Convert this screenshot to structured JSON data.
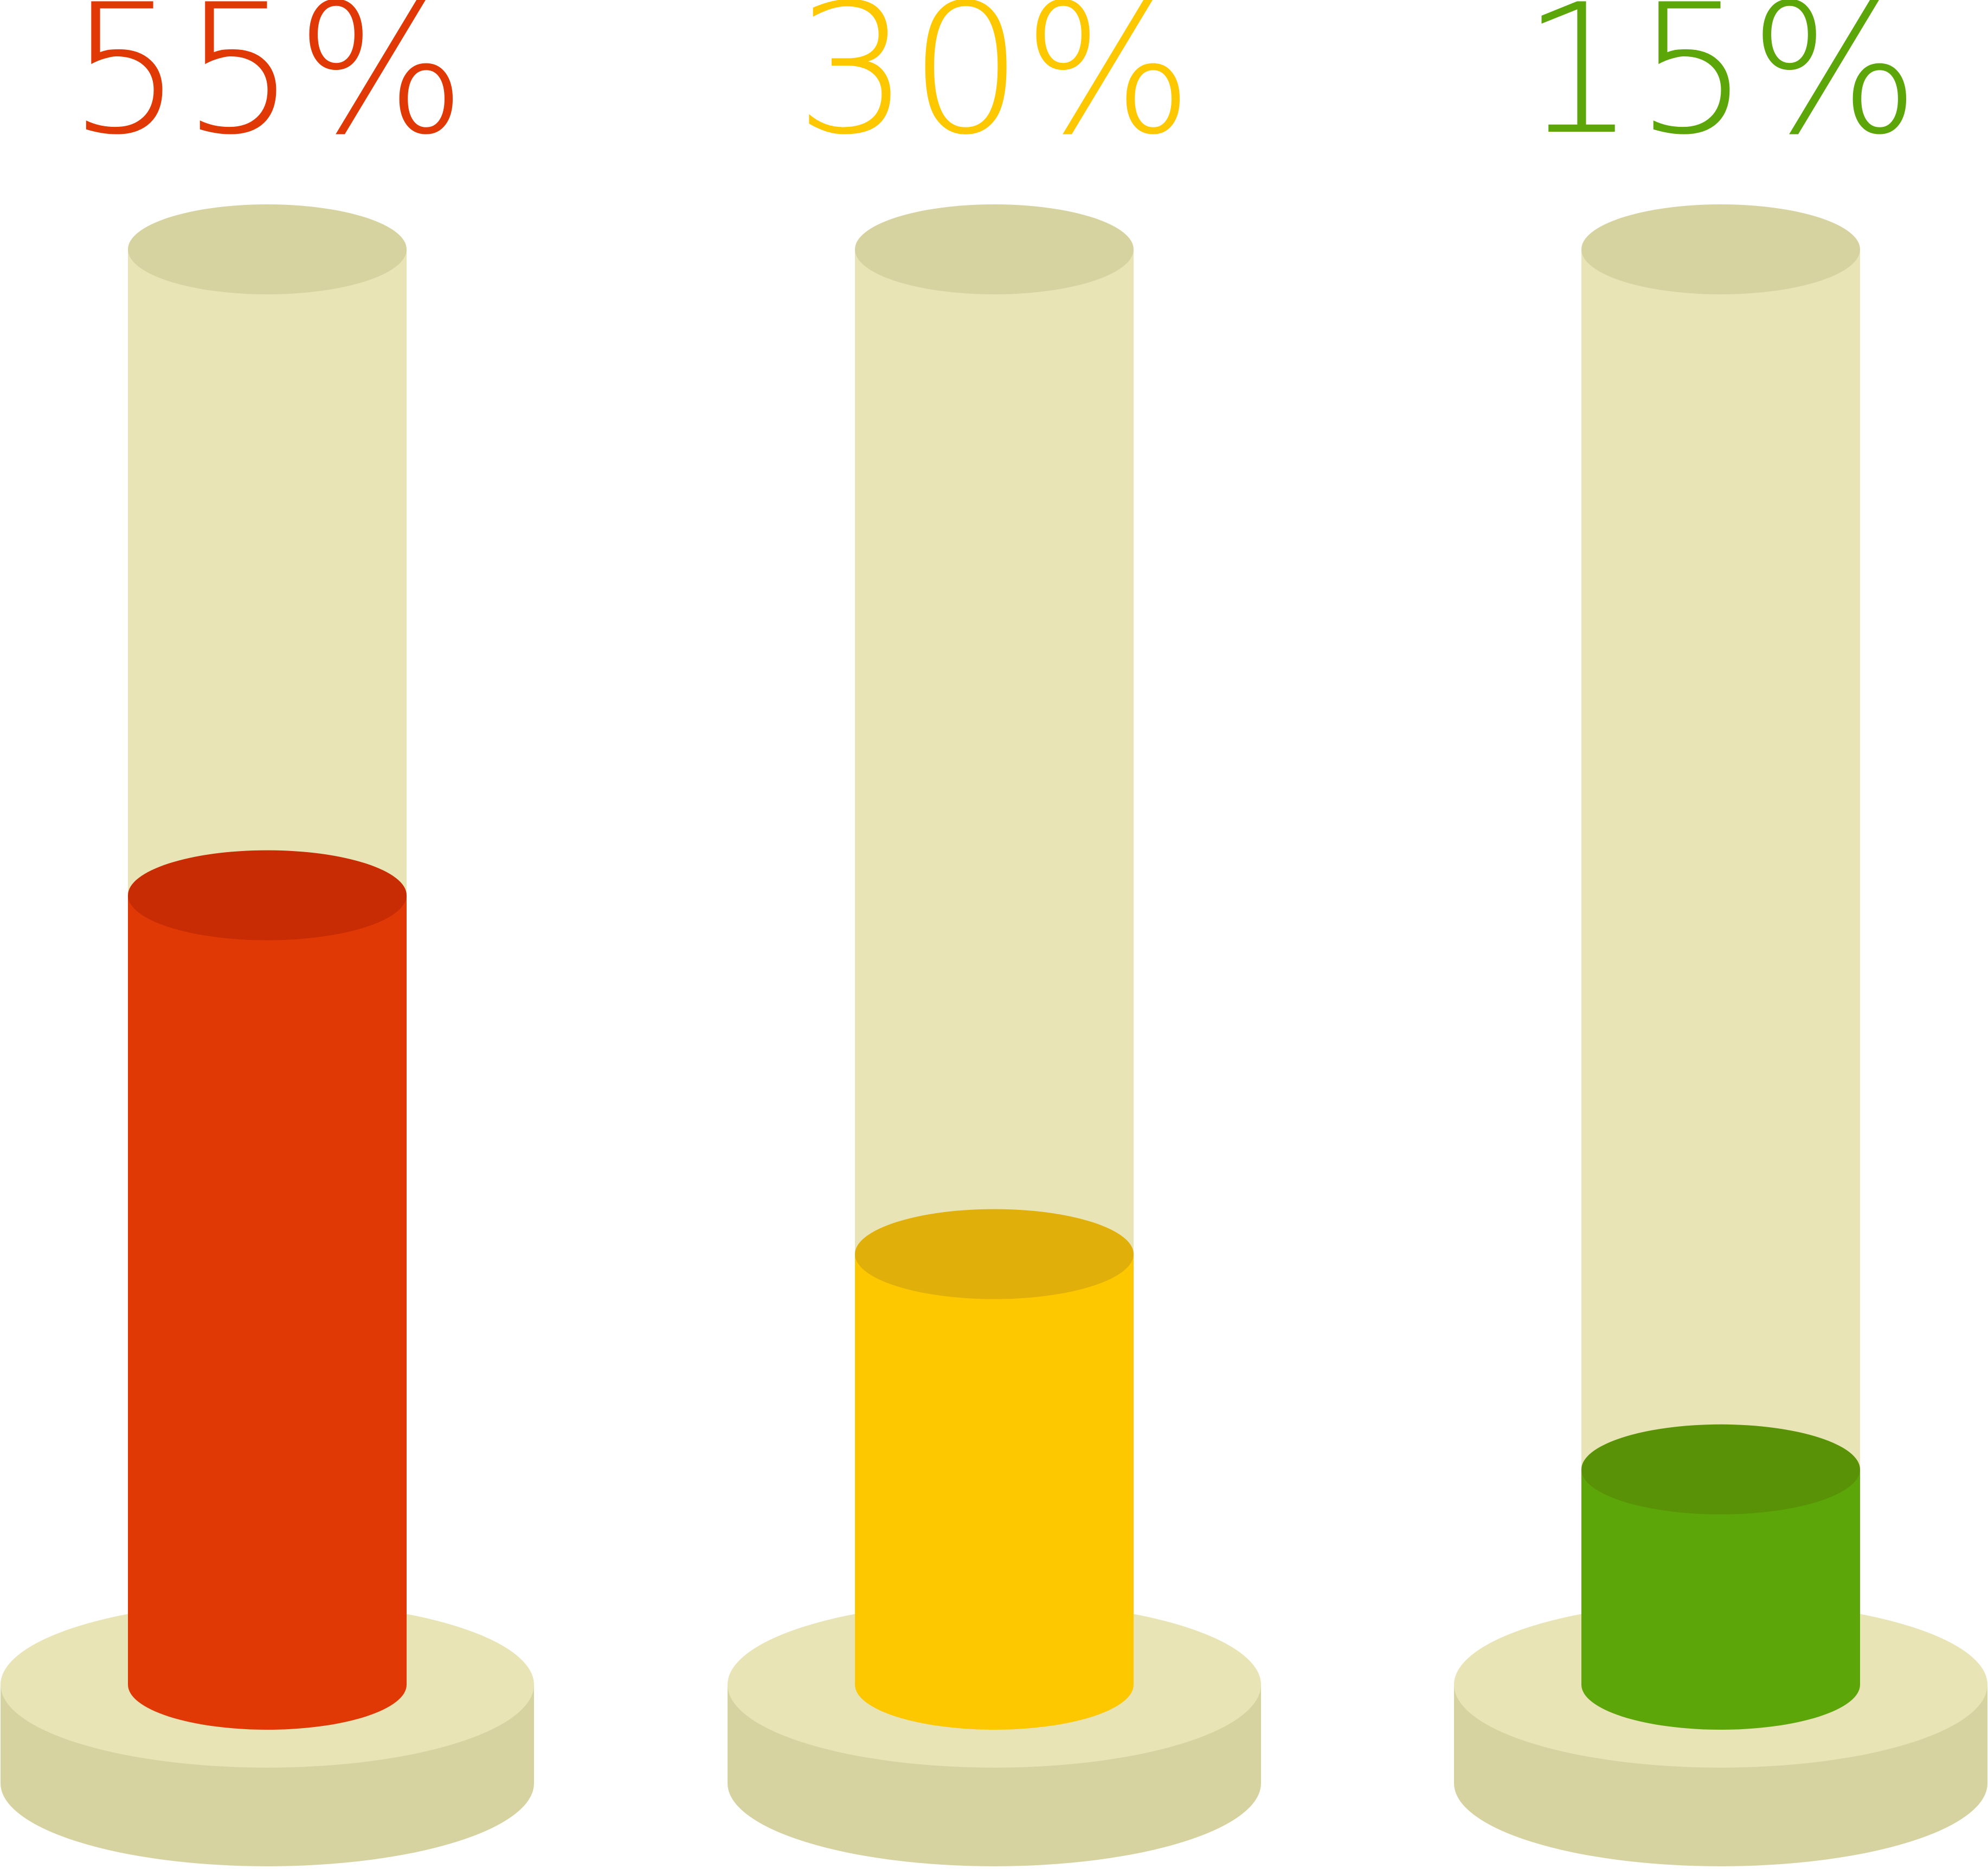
{
  "chart_data": {
    "type": "bar",
    "style": "3d-cylinder-gauges",
    "categories": [
      "",
      "",
      ""
    ],
    "values": [
      55,
      30,
      15
    ],
    "labels": [
      "55%",
      "30%",
      "15%"
    ],
    "ylim": [
      0,
      100
    ],
    "unit": "%",
    "colors": {
      "fills": [
        "#E13905",
        "#FDC800",
        "#5CA60A"
      ],
      "fill_tops": [
        "#C72C05",
        "#E1AF0A",
        "#599206"
      ],
      "tube": "#E8E4B6",
      "tube_top": "#D6D3A1",
      "base_top": "#E8E4B6",
      "base_side": "#D6D3A1"
    },
    "grid": false,
    "legend": "none"
  }
}
